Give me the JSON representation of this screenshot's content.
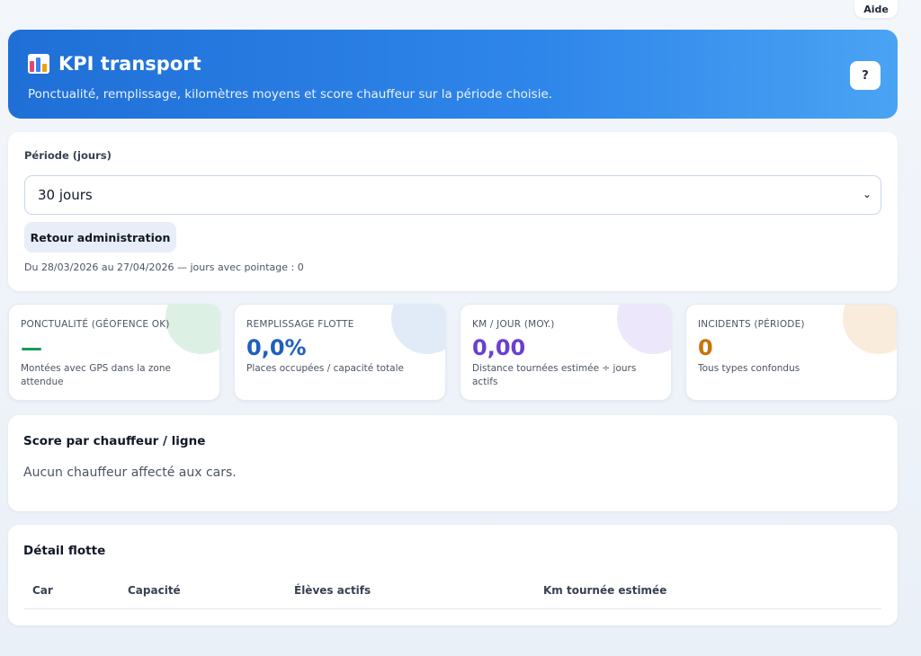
{
  "top": {
    "help_label": "Aide"
  },
  "header": {
    "title": "KPI transport",
    "subtitle": "Ponctualité, remplissage, kilomètres moyens et score chauffeur sur la période choisie.",
    "help_button": "?"
  },
  "period": {
    "label": "Période (jours)",
    "selected": "30 jours",
    "back_button": "Retour administration",
    "info": "Du 28/03/2026 au 27/04/2026 — jours avec pointage : 0"
  },
  "kpis": [
    {
      "title": "PONCTUALITÉ (GÉOFENCE OK)",
      "value": "—",
      "desc": "Montées avec GPS dans la zone attendue",
      "color": "#1a9a5a",
      "blob": "#bfe6cc"
    },
    {
      "title": "REMPLISSAGE FLOTTE",
      "value": "0,0%",
      "desc": "Places occupées / capacité totale",
      "color": "#1f5fbf",
      "blob": "#c8daf3"
    },
    {
      "title": "KM / JOUR (MOY.)",
      "value": "0,00",
      "desc": "Distance tournées estimée ÷ jours actifs",
      "color": "#6a3fd0",
      "blob": "#ddd3f6"
    },
    {
      "title": "INCIDENTS (PÉRIODE)",
      "value": "0",
      "desc": "Tous types confondus",
      "color": "#c9730a",
      "blob": "#f6dcc0"
    }
  ],
  "score": {
    "title": "Score par chauffeur / ligne",
    "empty": "Aucun chauffeur affecté aux cars."
  },
  "fleet": {
    "title": "Détail flotte",
    "columns": [
      "Car",
      "Capacité",
      "Élèves actifs",
      "Km tournée estimée"
    ]
  }
}
